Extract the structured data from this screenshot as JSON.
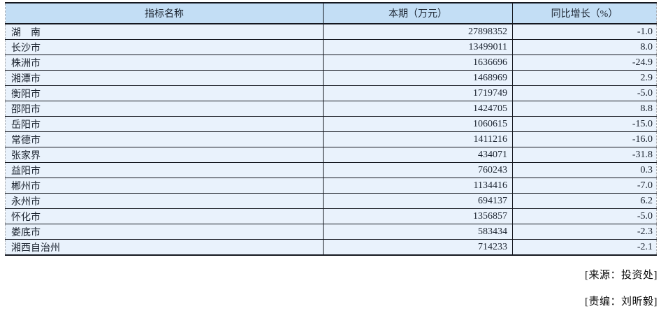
{
  "table": {
    "columns": {
      "name": "指标名称",
      "value": "本期（万元）",
      "growth": "同比增长（%）"
    },
    "rows": [
      {
        "name": "湖　南",
        "value": "27898352",
        "growth": "-1.0"
      },
      {
        "name": "长沙市",
        "value": "13499011",
        "growth": "8.0"
      },
      {
        "name": "株洲市",
        "value": "1636696",
        "growth": "-24.9"
      },
      {
        "name": "湘潭市",
        "value": "1468969",
        "growth": "2.9"
      },
      {
        "name": "衡阳市",
        "value": "1719749",
        "growth": "-5.0"
      },
      {
        "name": "邵阳市",
        "value": "1424705",
        "growth": "8.8"
      },
      {
        "name": "岳阳市",
        "value": "1060615",
        "growth": "-15.0"
      },
      {
        "name": "常德市",
        "value": "1411216",
        "growth": "-16.0"
      },
      {
        "name": "张家界",
        "value": "434071",
        "growth": "-31.8"
      },
      {
        "name": "益阳市",
        "value": "760243",
        "growth": "0.3"
      },
      {
        "name": "郴州市",
        "value": "1134416",
        "growth": "-7.0"
      },
      {
        "name": "永州市",
        "value": "694137",
        "growth": "6.2"
      },
      {
        "name": "怀化市",
        "value": "1356857",
        "growth": "-5.0"
      },
      {
        "name": "娄底市",
        "value": "583434",
        "growth": "-2.3"
      },
      {
        "name": "湘西自治州",
        "value": "714233",
        "growth": "-2.1"
      }
    ]
  },
  "footer": {
    "source": "[来源：投资处]",
    "editor": "[责编：刘昕毅]"
  },
  "colors": {
    "header_bg": "#c3def5",
    "row_bg": "#e9f2fc",
    "border_dark": "#14171f",
    "outer_border": "#a9adb3",
    "text": "#1c2430"
  }
}
